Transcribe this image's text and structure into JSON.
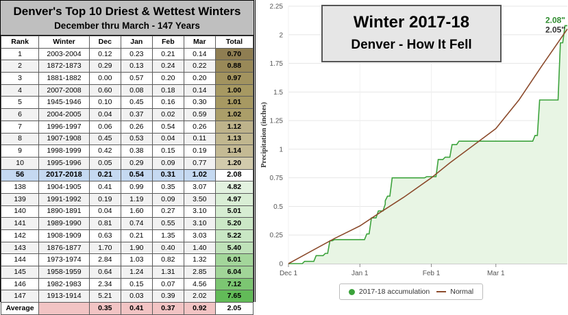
{
  "table": {
    "title": "Denver's Top 10 Driest & Wettest Winters",
    "subtitle": "December thru March - 147 Years",
    "headers": [
      "Rank",
      "Winter",
      "Dec",
      "Jan",
      "Feb",
      "Mar",
      "Total"
    ],
    "rows": [
      {
        "rank": "1",
        "winter": "2003-2004",
        "dec": "0.12",
        "jan": "0.23",
        "feb": "0.21",
        "mar": "0.14",
        "total": "0.70",
        "kind": "dry",
        "color": "#8f7e52"
      },
      {
        "rank": "2",
        "winter": "1872-1873",
        "dec": "0.29",
        "jan": "0.13",
        "feb": "0.24",
        "mar": "0.22",
        "total": "0.88",
        "kind": "dry",
        "color": "#998958"
      },
      {
        "rank": "3",
        "winter": "1881-1882",
        "dec": "0.00",
        "jan": "0.57",
        "feb": "0.20",
        "mar": "0.20",
        "total": "0.97",
        "kind": "dry",
        "color": "#a2935f"
      },
      {
        "rank": "4",
        "winter": "2007-2008",
        "dec": "0.60",
        "jan": "0.08",
        "feb": "0.18",
        "mar": "0.14",
        "total": "1.00",
        "kind": "dry",
        "color": "#a79962"
      },
      {
        "rank": "5",
        "winter": "1945-1946",
        "dec": "0.10",
        "jan": "0.45",
        "feb": "0.16",
        "mar": "0.30",
        "total": "1.01",
        "kind": "dry",
        "color": "#a79962"
      },
      {
        "rank": "6",
        "winter": "2004-2005",
        "dec": "0.04",
        "jan": "0.37",
        "feb": "0.02",
        "mar": "0.59",
        "total": "1.02",
        "kind": "dry",
        "color": "#ab9e69"
      },
      {
        "rank": "7",
        "winter": "1996-1997",
        "dec": "0.06",
        "jan": "0.26",
        "feb": "0.54",
        "mar": "0.26",
        "total": "1.12",
        "kind": "dry",
        "color": "#beb38b"
      },
      {
        "rank": "8",
        "winter": "1907-1908",
        "dec": "0.45",
        "jan": "0.53",
        "feb": "0.04",
        "mar": "0.11",
        "total": "1.13",
        "kind": "dry",
        "color": "#c1b78f"
      },
      {
        "rank": "9",
        "winter": "1998-1999",
        "dec": "0.42",
        "jan": "0.38",
        "feb": "0.15",
        "mar": "0.19",
        "total": "1.14",
        "kind": "dry",
        "color": "#c4ba94"
      },
      {
        "rank": "10",
        "winter": "1995-1996",
        "dec": "0.05",
        "jan": "0.29",
        "feb": "0.09",
        "mar": "0.77",
        "total": "1.20",
        "kind": "dry",
        "color": "#d2cbac"
      },
      {
        "rank": "56",
        "winter": "2017-2018",
        "dec": "0.21",
        "jan": "0.54",
        "feb": "0.31",
        "mar": "1.02",
        "total": "2.08",
        "kind": "cur",
        "color": "#ffffff"
      },
      {
        "rank": "138",
        "winter": "1904-1905",
        "dec": "0.41",
        "jan": "0.99",
        "feb": "0.35",
        "mar": "3.07",
        "total": "4.82",
        "kind": "wet",
        "color": "#e3f2e0"
      },
      {
        "rank": "139",
        "winter": "1991-1992",
        "dec": "0.19",
        "jan": "1.19",
        "feb": "0.09",
        "mar": "3.50",
        "total": "4.97",
        "kind": "wet",
        "color": "#d9eed5"
      },
      {
        "rank": "140",
        "winter": "1890-1891",
        "dec": "0.04",
        "jan": "1.60",
        "feb": "0.27",
        "mar": "3.10",
        "total": "5.01",
        "kind": "wet",
        "color": "#d6edd2"
      },
      {
        "rank": "141",
        "winter": "1989-1990",
        "dec": "0.81",
        "jan": "0.74",
        "feb": "0.55",
        "mar": "3.10",
        "total": "5.20",
        "kind": "wet",
        "color": "#cbe8c6"
      },
      {
        "rank": "142",
        "winter": "1908-1909",
        "dec": "0.63",
        "jan": "0.21",
        "feb": "1.35",
        "mar": "3.03",
        "total": "5.22",
        "kind": "wet",
        "color": "#c9e7c4"
      },
      {
        "rank": "143",
        "winter": "1876-1877",
        "dec": "1.70",
        "jan": "1.90",
        "feb": "0.40",
        "mar": "1.40",
        "total": "5.40",
        "kind": "wet",
        "color": "#bfe2b9"
      },
      {
        "rank": "144",
        "winter": "1973-1974",
        "dec": "2.84",
        "jan": "1.03",
        "feb": "0.82",
        "mar": "1.32",
        "total": "6.01",
        "kind": "wet",
        "color": "#a3d69a"
      },
      {
        "rank": "145",
        "winter": "1958-1959",
        "dec": "0.64",
        "jan": "1.24",
        "feb": "1.31",
        "mar": "2.85",
        "total": "6.04",
        "kind": "wet",
        "color": "#a1d598"
      },
      {
        "rank": "146",
        "winter": "1982-1983",
        "dec": "2.34",
        "jan": "0.15",
        "feb": "0.07",
        "mar": "4.56",
        "total": "7.12",
        "kind": "wet",
        "color": "#7cc672"
      },
      {
        "rank": "147",
        "winter": "1913-1914",
        "dec": "5.21",
        "jan": "0.03",
        "feb": "0.39",
        "mar": "2.02",
        "total": "7.65",
        "kind": "wet",
        "color": "#62bb58"
      }
    ],
    "average": {
      "label": "Average",
      "dec": "0.35",
      "jan": "0.41",
      "feb": "0.37",
      "mar": "0.92",
      "total": "2.05"
    }
  },
  "banner": {
    "line1": "Winter 2017-18",
    "line2": "Denver - How It Fell"
  },
  "chart_data": {
    "type": "area",
    "ylabel": "Precipitation (inches)",
    "ylim": [
      0,
      2.25
    ],
    "yticks": [
      "0",
      "0.25",
      "0.5",
      "0.75",
      "1",
      "1.25",
      "1.5",
      "1.75",
      "2",
      "2.25"
    ],
    "xticks": [
      {
        "label": "Dec 1",
        "day": 0
      },
      {
        "label": "Jan 1",
        "day": 31
      },
      {
        "label": "Feb 1",
        "day": 62
      },
      {
        "label": "Mar 1",
        "day": 90
      }
    ],
    "xlim_days": [
      0,
      121
    ],
    "grid": true,
    "legend_position": "bottom",
    "series": [
      {
        "name": "2017-18 accumulation",
        "color": "#3ba23b",
        "fill": "#e8f5e4",
        "final_label": "2.08\"",
        "points": [
          [
            0,
            0.0
          ],
          [
            6,
            0.0
          ],
          [
            7,
            0.02
          ],
          [
            11,
            0.02
          ],
          [
            12,
            0.07
          ],
          [
            15,
            0.07
          ],
          [
            16,
            0.09
          ],
          [
            17,
            0.09
          ],
          [
            18,
            0.2
          ],
          [
            19,
            0.2
          ],
          [
            20,
            0.21
          ],
          [
            33,
            0.21
          ],
          [
            34,
            0.26
          ],
          [
            35,
            0.26
          ],
          [
            36,
            0.4
          ],
          [
            38,
            0.4
          ],
          [
            39,
            0.46
          ],
          [
            41,
            0.46
          ],
          [
            42,
            0.52
          ],
          [
            42,
            0.55
          ],
          [
            43,
            0.59
          ],
          [
            44,
            0.59
          ],
          [
            45,
            0.75
          ],
          [
            59,
            0.75
          ],
          [
            60,
            0.76
          ],
          [
            64,
            0.76
          ],
          [
            65,
            0.91
          ],
          [
            67,
            0.91
          ],
          [
            68,
            0.93
          ],
          [
            70,
            0.93
          ],
          [
            71,
            1.04
          ],
          [
            73,
            1.04
          ],
          [
            74,
            1.07
          ],
          [
            106,
            1.07
          ],
          [
            107,
            1.12
          ],
          [
            108,
            1.12
          ],
          [
            109,
            1.43
          ],
          [
            117,
            1.43
          ],
          [
            118,
            1.93
          ],
          [
            119,
            1.93
          ],
          [
            120,
            2.08
          ],
          [
            121,
            2.08
          ]
        ]
      },
      {
        "name": "Normal",
        "color": "#8b4a2b",
        "final_label": "2.05\"",
        "points": [
          [
            0,
            0.0
          ],
          [
            10,
            0.11
          ],
          [
            20,
            0.22
          ],
          [
            31,
            0.33
          ],
          [
            40,
            0.45
          ],
          [
            50,
            0.58
          ],
          [
            62,
            0.75
          ],
          [
            70,
            0.88
          ],
          [
            80,
            1.03
          ],
          [
            90,
            1.18
          ],
          [
            100,
            1.43
          ],
          [
            110,
            1.73
          ],
          [
            121,
            2.05
          ]
        ]
      }
    ]
  }
}
